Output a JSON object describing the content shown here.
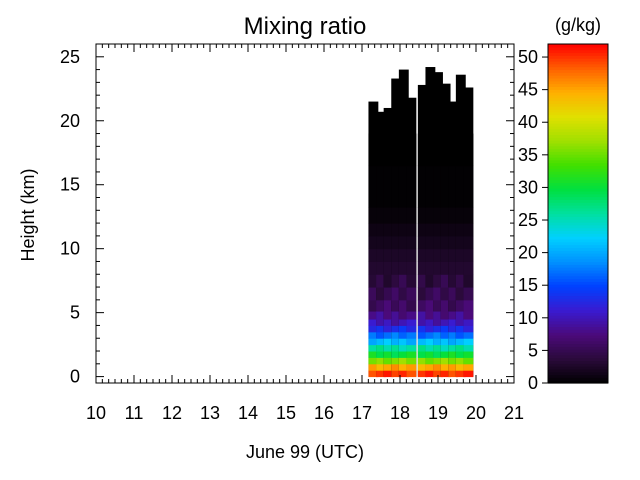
{
  "chart_data": {
    "type": "heatmap",
    "title": "Mixing ratio",
    "xlabel": "June 99 (UTC)",
    "ylabel": "Height (km)",
    "xlim": [
      10,
      21
    ],
    "ylim": [
      -0.5,
      26
    ],
    "x_ticks": [
      10,
      11,
      12,
      13,
      14,
      15,
      16,
      17,
      18,
      19,
      20,
      21
    ],
    "x_tick_labels": [
      "10",
      "11",
      "12",
      "13",
      "14",
      "15",
      "16",
      "17",
      "18",
      "19",
      "20",
      "21"
    ],
    "y_ticks": [
      0,
      5,
      10,
      15,
      20,
      25
    ],
    "y_tick_labels": [
      "0",
      "5",
      "10",
      "15",
      "20",
      "25"
    ],
    "colorbar": {
      "label": "(g/kg)",
      "range": [
        0,
        52
      ],
      "ticks": [
        0,
        5,
        10,
        15,
        20,
        25,
        30,
        35,
        40,
        45,
        50
      ],
      "tick_labels": [
        "0",
        "5",
        "10",
        "15",
        "20",
        "25",
        "30",
        "35",
        "40",
        "45",
        "50"
      ],
      "colormap": [
        "#000000",
        "#2a0a3a",
        "#4b0a7a",
        "#3a1ad0",
        "#0040ff",
        "#0090ff",
        "#00d0ff",
        "#00e0a0",
        "#00e040",
        "#40e000",
        "#a0e000",
        "#e0e000",
        "#ffb000",
        "#ff6000",
        "#ff0000"
      ]
    },
    "columns": [
      {
        "x": 17.3,
        "top": 21.5
      },
      {
        "x": 17.5,
        "top": 20.7
      },
      {
        "x": 17.7,
        "top": 21.0
      },
      {
        "x": 17.9,
        "top": 23.3
      },
      {
        "x": 18.1,
        "top": 24.0
      },
      {
        "x": 18.3,
        "top": 21.8
      },
      {
        "x": 18.6,
        "top": 22.8
      },
      {
        "x": 18.8,
        "top": 24.2
      },
      {
        "x": 19.0,
        "top": 23.8
      },
      {
        "x": 19.2,
        "top": 22.9
      },
      {
        "x": 19.4,
        "top": 21.5
      },
      {
        "x": 19.6,
        "top": 23.6
      },
      {
        "x": 19.8,
        "top": 22.6
      }
    ],
    "profile": [
      {
        "height": 0.25,
        "value": 50
      },
      {
        "height": 0.75,
        "value": 45
      },
      {
        "height": 1.25,
        "value": 36
      },
      {
        "height": 1.75,
        "value": 30
      },
      {
        "height": 2.25,
        "value": 26
      },
      {
        "height": 2.75,
        "value": 21
      },
      {
        "height": 3.25,
        "value": 17
      },
      {
        "height": 3.75,
        "value": 13
      },
      {
        "height": 4.25,
        "value": 10
      },
      {
        "height": 4.75,
        "value": 8
      },
      {
        "height": 5.5,
        "value": 6
      },
      {
        "height": 6.5,
        "value": 5
      },
      {
        "height": 7.5,
        "value": 4
      },
      {
        "height": 8.5,
        "value": 3
      },
      {
        "height": 9.5,
        "value": 2.5
      },
      {
        "height": 10.5,
        "value": 1.8
      },
      {
        "height": 11.5,
        "value": 1.2
      },
      {
        "height": 12.5,
        "value": 0.6
      },
      {
        "height": 14.0,
        "value": 0.2
      },
      {
        "height": 19.0,
        "value": 0
      }
    ]
  }
}
